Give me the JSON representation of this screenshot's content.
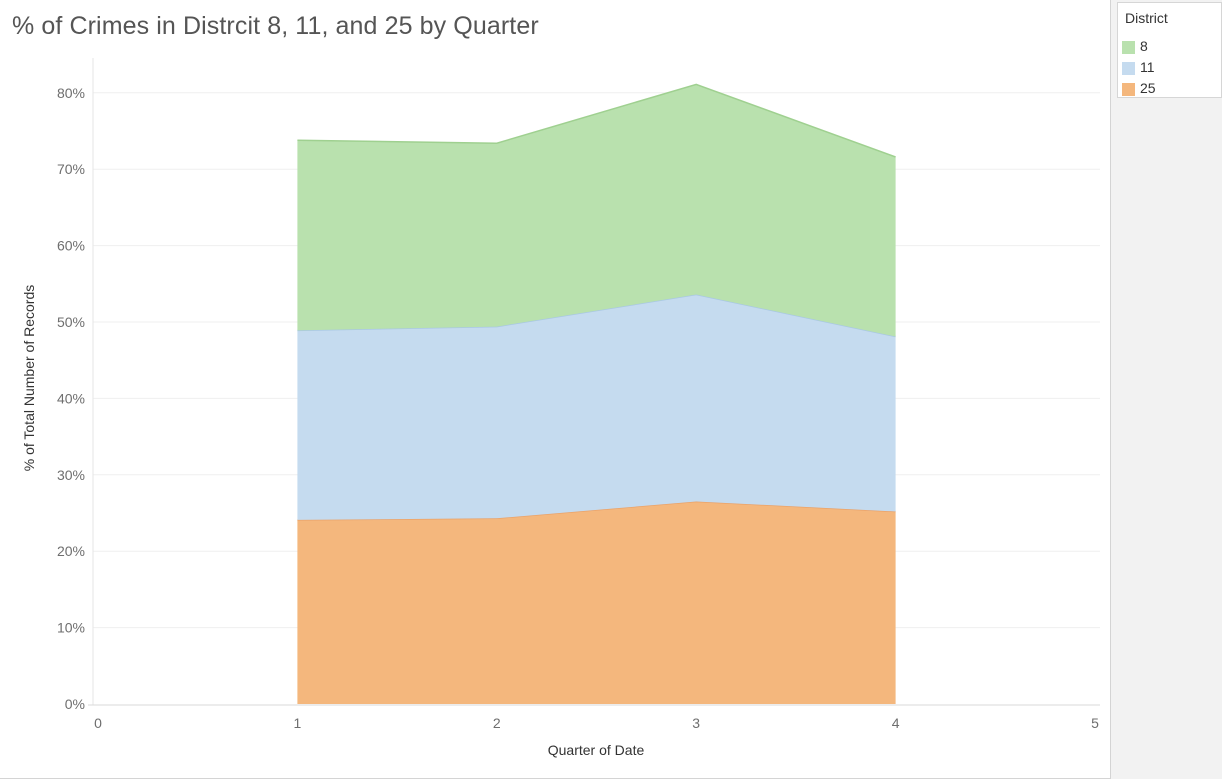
{
  "chart_data": {
    "type": "area",
    "stacked": true,
    "title": "% of Crimes in Distrcit 8, 11, and 25 by Quarter",
    "xlabel": "Quarter of Date",
    "ylabel": "% of Total Number of Records",
    "x": [
      1,
      2,
      3,
      4
    ],
    "xlim": [
      0,
      5
    ],
    "ylim": [
      0,
      0.85
    ],
    "x_ticks": [
      "0",
      "1",
      "2",
      "3",
      "4",
      "5"
    ],
    "y_ticks": [
      "0%",
      "10%",
      "20%",
      "30%",
      "40%",
      "50%",
      "60%",
      "70%",
      "80%"
    ],
    "grid": true,
    "legend_position": "right",
    "legend_title": "District",
    "series": [
      {
        "name": "25",
        "color": "#f4b77d",
        "values": [
          0.241,
          0.243,
          0.265,
          0.252
        ]
      },
      {
        "name": "11",
        "color": "#c5dbef",
        "values": [
          0.248,
          0.251,
          0.271,
          0.229
        ]
      },
      {
        "name": "8",
        "color": "#b9e1ae",
        "values": [
          0.249,
          0.24,
          0.275,
          0.235
        ]
      }
    ],
    "legend_order": [
      "8",
      "11",
      "25"
    ]
  }
}
